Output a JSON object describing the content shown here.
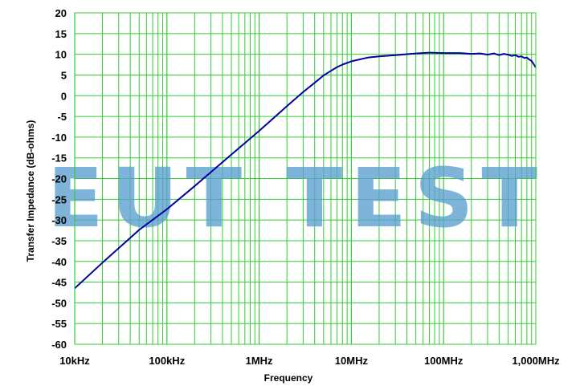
{
  "chart_data": {
    "type": "line",
    "title": "",
    "xlabel": "Frequency",
    "ylabel": "Transfer Impedance (dB-ohms)",
    "xscale": "log",
    "xlim": [
      10000,
      1000000000
    ],
    "ylim": [
      -60,
      20
    ],
    "grid": true,
    "x_tick_values": [
      10000,
      100000,
      1000000,
      10000000,
      100000000,
      1000000000
    ],
    "x_tick_labels": [
      "10kHz",
      "100kHz",
      "1MHz",
      "10MHz",
      "100MHz",
      "1,000MHz"
    ],
    "y_ticks": [
      20,
      15,
      10,
      5,
      0,
      -5,
      -10,
      -15,
      -20,
      -25,
      -30,
      -35,
      -40,
      -45,
      -50,
      -55,
      -60
    ],
    "watermark": "EUT TEST",
    "series": [
      {
        "name": "",
        "x": [
          10000,
          20000,
          50000,
          100000,
          200000,
          500000,
          1000000,
          2000000,
          3000000,
          4000000,
          5000000,
          6000000,
          7000000,
          8000000,
          10000000,
          15000000,
          20000000,
          30000000,
          50000000,
          70000000,
          100000000,
          150000000,
          200000000,
          250000000,
          300000000,
          350000000,
          400000000,
          450000000,
          500000000,
          550000000,
          600000000,
          650000000,
          700000000,
          750000000,
          800000000,
          850000000,
          900000000,
          950000000,
          1000000000
        ],
        "values": [
          -46.5,
          -40.3,
          -32.4,
          -27.4,
          -21.8,
          -14.2,
          -8.5,
          -2.5,
          0.9,
          3.1,
          4.9,
          6.0,
          6.9,
          7.5,
          8.3,
          9.2,
          9.5,
          9.8,
          10.2,
          10.4,
          10.3,
          10.3,
          10.1,
          10.2,
          9.9,
          10.2,
          9.8,
          10.1,
          9.9,
          9.6,
          9.8,
          9.4,
          9.5,
          9.1,
          9.2,
          8.7,
          8.4,
          7.6,
          6.8
        ],
        "color": "#0000a0"
      }
    ],
    "colors": {
      "grid": "#33cc33",
      "line": "#0000a0",
      "background": "#ffffff"
    }
  }
}
